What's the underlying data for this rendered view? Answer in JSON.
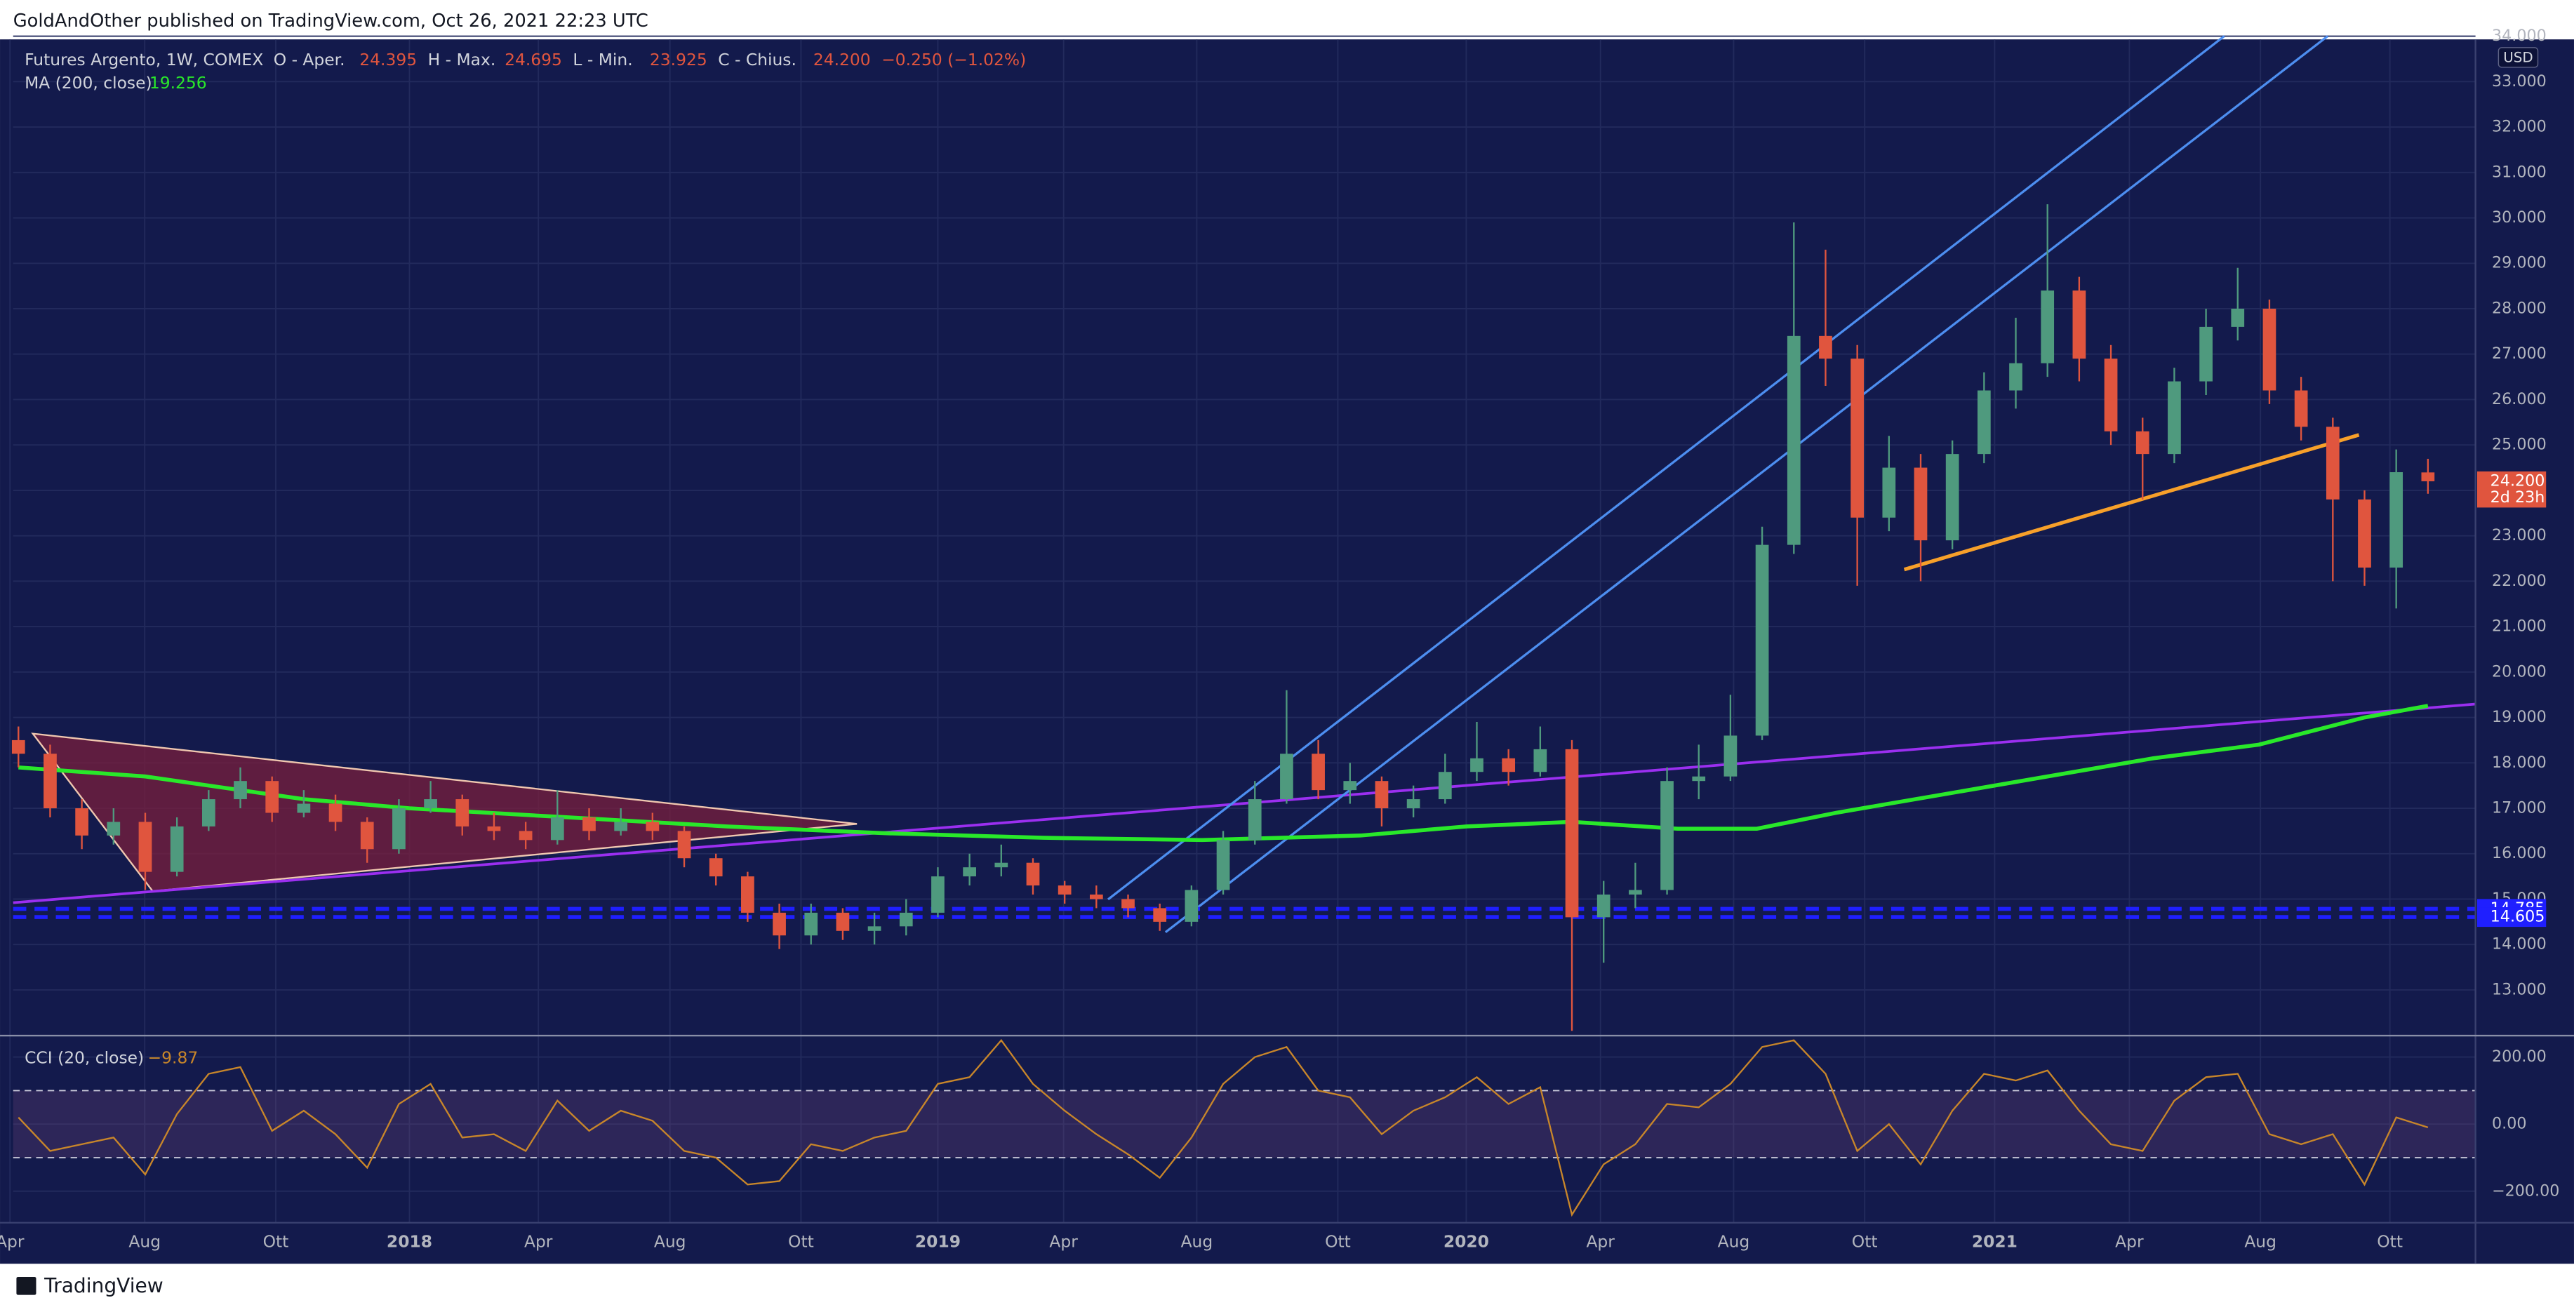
{
  "header": {
    "text": "GoldAndOther published on TradingView.com, Oct 26, 2021 22:23 UTC"
  },
  "footer": {
    "brand": "TradingView"
  },
  "chart_data": {
    "type": "candlestick",
    "title": "Futures Argento, 1W, COMEX",
    "ohlc_legend": [
      {
        "label": "O - Aper.",
        "value": "24.395"
      },
      {
        "label": "H - Max.",
        "value": "24.695"
      },
      {
        "label": "L - Min.",
        "value": "23.925"
      },
      {
        "label": "C - Chius.",
        "value": "24.200"
      }
    ],
    "change": "−0.250 (−1.02%)",
    "x": [
      2017.26,
      2017.32,
      2017.38,
      2017.44,
      2017.5,
      2017.56,
      2017.62,
      2017.68,
      2017.74,
      2017.8,
      2017.86,
      2017.92,
      2017.98,
      2018.04,
      2018.1,
      2018.16,
      2018.22,
      2018.28,
      2018.34,
      2018.4,
      2018.46,
      2018.52,
      2018.58,
      2018.64,
      2018.7,
      2018.76,
      2018.82,
      2018.88,
      2018.94,
      2019,
      2019.06,
      2019.12,
      2019.18,
      2019.24,
      2019.3,
      2019.36,
      2019.42,
      2019.48,
      2019.54,
      2019.6,
      2019.66,
      2019.72,
      2019.78,
      2019.84,
      2019.9,
      2019.96,
      2020.02,
      2020.08,
      2020.14,
      2020.2,
      2020.26,
      2020.32,
      2020.38,
      2020.44,
      2020.5,
      2020.56,
      2020.62,
      2020.68,
      2020.74,
      2020.8,
      2020.86,
      2020.92,
      2020.98,
      2021.04,
      2021.1,
      2021.16,
      2021.22,
      2021.28,
      2021.34,
      2021.4,
      2021.46,
      2021.52,
      2021.58,
      2021.64,
      2021.7,
      2021.76,
      2021.82
    ],
    "open": [
      18.5,
      18.2,
      17.0,
      16.4,
      16.7,
      15.6,
      16.6,
      17.2,
      17.6,
      16.9,
      17.1,
      16.7,
      16.1,
      17.0,
      17.2,
      16.6,
      16.5,
      16.3,
      16.8,
      16.5,
      16.7,
      16.5,
      15.9,
      15.5,
      14.7,
      14.2,
      14.7,
      14.3,
      14.4,
      14.7,
      15.5,
      15.7,
      15.8,
      15.3,
      15.1,
      15.0,
      14.8,
      14.5,
      15.2,
      16.3,
      17.2,
      18.2,
      17.4,
      17.6,
      17.0,
      17.2,
      17.8,
      18.1,
      17.8,
      18.3,
      14.6,
      15.1,
      15.2,
      17.6,
      17.7,
      18.6,
      22.8,
      27.4,
      26.9,
      23.4,
      24.5,
      22.9,
      24.8,
      26.2,
      26.8,
      28.4,
      26.9,
      25.3,
      24.8,
      26.4,
      27.6,
      28.0,
      26.2,
      25.4,
      23.8,
      22.3,
      24.395
    ],
    "high": [
      18.8,
      18.4,
      17.2,
      17.0,
      16.9,
      16.8,
      17.4,
      17.9,
      17.7,
      17.4,
      17.3,
      16.8,
      17.2,
      17.6,
      17.3,
      16.9,
      16.7,
      17.4,
      17.0,
      17.0,
      16.9,
      16.6,
      16.0,
      15.6,
      14.9,
      14.9,
      14.8,
      14.7,
      15.0,
      15.7,
      16.0,
      16.2,
      15.9,
      15.4,
      15.3,
      15.1,
      14.9,
      15.3,
      16.5,
      17.6,
      19.6,
      18.5,
      18.0,
      17.7,
      17.5,
      18.2,
      18.9,
      18.3,
      18.8,
      18.5,
      15.4,
      15.8,
      17.9,
      18.4,
      19.5,
      23.2,
      29.9,
      29.3,
      27.2,
      25.2,
      24.8,
      25.1,
      26.6,
      27.8,
      30.3,
      28.7,
      27.2,
      25.6,
      26.7,
      28.0,
      28.9,
      28.2,
      26.5,
      25.6,
      24.0,
      24.9,
      24.695
    ],
    "low": [
      17.9,
      16.8,
      16.1,
      16.2,
      15.2,
      15.5,
      16.5,
      17.0,
      16.7,
      16.8,
      16.5,
      15.8,
      16.0,
      16.9,
      16.4,
      16.3,
      16.1,
      16.2,
      16.3,
      16.4,
      16.3,
      15.7,
      15.3,
      14.5,
      13.9,
      14.0,
      14.1,
      14.0,
      14.2,
      14.6,
      15.3,
      15.5,
      15.1,
      14.9,
      14.8,
      14.6,
      14.3,
      14.4,
      15.1,
      16.2,
      17.1,
      17.2,
      17.1,
      16.6,
      16.8,
      17.1,
      17.6,
      17.5,
      17.7,
      12.1,
      13.6,
      14.8,
      15.1,
      17.2,
      17.6,
      18.5,
      22.6,
      26.3,
      21.9,
      23.1,
      22.0,
      22.7,
      24.6,
      25.8,
      26.5,
      26.4,
      25.0,
      23.8,
      24.6,
      26.1,
      27.3,
      25.9,
      25.1,
      22.0,
      21.9,
      21.4,
      23.925
    ],
    "close": [
      18.2,
      17.0,
      16.4,
      16.7,
      15.6,
      16.6,
      17.2,
      17.6,
      16.9,
      17.1,
      16.7,
      16.1,
      17.0,
      17.2,
      16.6,
      16.5,
      16.3,
      16.8,
      16.5,
      16.7,
      16.5,
      15.9,
      15.5,
      14.7,
      14.2,
      14.7,
      14.3,
      14.4,
      14.7,
      15.5,
      15.7,
      15.8,
      15.3,
      15.1,
      15.0,
      14.8,
      14.5,
      15.2,
      16.3,
      17.2,
      18.2,
      17.4,
      17.6,
      17.0,
      17.2,
      17.8,
      18.1,
      17.8,
      18.3,
      14.6,
      15.1,
      15.2,
      17.6,
      17.7,
      18.6,
      22.8,
      27.4,
      26.9,
      23.4,
      24.5,
      22.9,
      24.8,
      26.2,
      26.8,
      28.4,
      26.9,
      25.3,
      24.8,
      26.4,
      27.6,
      28.0,
      26.2,
      25.4,
      23.8,
      22.3,
      24.4,
      24.2
    ],
    "up_color": "#4f9a7e",
    "down_color": "#e0553e",
    "xlim": [
      2017.25,
      2021.91
    ],
    "xticks": [
      {
        "value": 2017.244,
        "label": "Apr"
      },
      {
        "value": 2017.499,
        "label": "Aug"
      },
      {
        "value": 2017.747,
        "label": "Ott"
      },
      2018,
      {
        "value": 2018.244,
        "label": "Apr"
      },
      {
        "value": 2018.493,
        "label": "Aug"
      },
      {
        "value": 2018.741,
        "label": "Ott"
      },
      2019,
      {
        "value": 2019.238,
        "label": "Apr"
      },
      {
        "value": 2019.49,
        "label": "Aug"
      },
      {
        "value": 2019.757,
        "label": "Ott"
      },
      2020,
      {
        "value": 2020.254,
        "label": "Apr"
      },
      {
        "value": 2020.506,
        "label": "Aug"
      },
      {
        "value": 2020.754,
        "label": "Ott"
      },
      2021,
      {
        "value": 2021.255,
        "label": "Apr"
      },
      {
        "value": 2021.503,
        "label": "Aug"
      },
      {
        "value": 2021.748,
        "label": "Ott"
      }
    ],
    "ylim": [
      12.03,
      33.93
    ],
    "yticks": [
      {
        "value": 13,
        "label": "13.000"
      },
      {
        "value": 14,
        "label": "14.000"
      },
      {
        "value": 15,
        "label": "15.000"
      },
      {
        "value": 16,
        "label": "16.000"
      },
      {
        "value": 17,
        "label": "17.000"
      },
      {
        "value": 18,
        "label": "18.000"
      },
      {
        "value": 19,
        "label": "19.000"
      },
      {
        "value": 20,
        "label": "20.000"
      },
      {
        "value": 21,
        "label": "21.000"
      },
      {
        "value": 22,
        "label": "22.000"
      },
      {
        "value": 23,
        "label": "23.000"
      },
      {
        "value": 24,
        "label": "24.000"
      },
      {
        "value": 25,
        "label": "25.000"
      },
      {
        "value": 26,
        "label": "26.000"
      },
      {
        "value": 27,
        "label": "27.000"
      },
      {
        "value": 28,
        "label": "28.000"
      },
      {
        "value": 29,
        "label": "29.000"
      },
      {
        "value": 30,
        "label": "30.000"
      },
      {
        "value": 31,
        "label": "31.000"
      },
      {
        "value": 32,
        "label": "32.000"
      },
      {
        "value": 33,
        "label": "33.000"
      },
      {
        "value": 34,
        "label": "34.000"
      }
    ],
    "grid": true,
    "currency": "USD",
    "price_badges": [
      {
        "value": 24.2,
        "label": "24.200",
        "sub": "2d 23h",
        "color": "#e0553e"
      },
      {
        "value": 14.785,
        "label": "14.785",
        "color": "#1f1fff"
      },
      {
        "value": 14.605,
        "label": "14.605",
        "color": "#1f1fff"
      }
    ],
    "ma": {
      "name": "MA (200, close)",
      "last": "19.256",
      "color": "#29e82a",
      "x": [
        2017.26,
        2017.5,
        2017.8,
        2018.0,
        2018.3,
        2018.6,
        2018.9,
        2019.2,
        2019.5,
        2019.8,
        2020.0,
        2020.2,
        2020.4,
        2020.55,
        2020.7,
        2020.9,
        2021.1,
        2021.3,
        2021.5,
        2021.7,
        2021.82
      ],
      "values": [
        17.9,
        17.7,
        17.2,
        17.0,
        16.8,
        16.6,
        16.45,
        16.35,
        16.3,
        16.4,
        16.6,
        16.7,
        16.55,
        16.55,
        16.9,
        17.3,
        17.7,
        18.1,
        18.4,
        19.0,
        19.256
      ]
    },
    "cci": {
      "name": "CCI (20, close)",
      "last": "−9.87",
      "color": "#c8862a",
      "values": [
        20,
        -80,
        -60,
        -40,
        -150,
        30,
        150,
        170,
        -20,
        40,
        -30,
        -130,
        60,
        120,
        -40,
        -30,
        -80,
        70,
        -20,
        40,
        10,
        -80,
        -100,
        -180,
        -170,
        -60,
        -80,
        -40,
        -20,
        120,
        140,
        250,
        120,
        40,
        -30,
        -90,
        -160,
        -40,
        120,
        200,
        230,
        100,
        80,
        -30,
        40,
        80,
        140,
        60,
        110,
        -270,
        -120,
        -60,
        60,
        50,
        120,
        230,
        250,
        150,
        -80,
        0,
        -120,
        40,
        150,
        130,
        160,
        40,
        -60,
        -80,
        70,
        140,
        150,
        -30,
        -60,
        -30,
        -180,
        20,
        -9.87
      ],
      "ylim": [
        -294,
        259
      ],
      "yticks": [
        {
          "value": 200,
          "label": "200.00"
        },
        {
          "value": 0,
          "label": "0.00"
        },
        {
          "value": -200,
          "label": "−200.00"
        }
      ],
      "bands": [
        100,
        -100
      ]
    }
  }
}
